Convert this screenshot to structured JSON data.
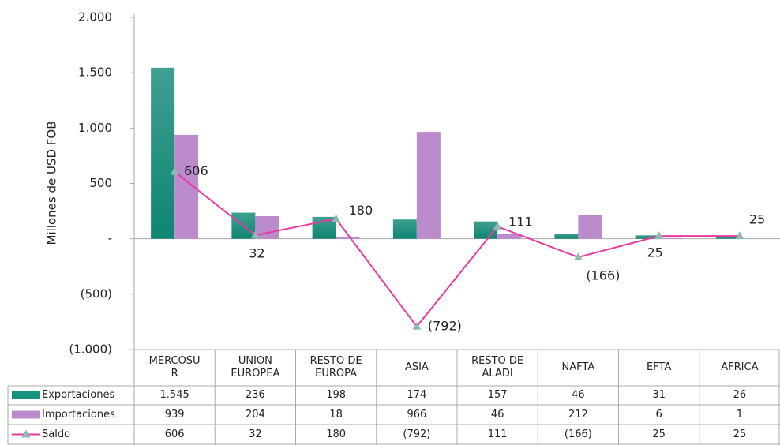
{
  "chart_data": {
    "type": "bar",
    "ylabel": "Millones de USD FOB",
    "categories": [
      "MERCOSU\nR",
      "UNION\nEUROPEA",
      "RESTO DE\nEUROPA",
      "ASIA",
      "RESTO DE\nALADI",
      "NAFTA",
      "EFTA",
      "AFRICA"
    ],
    "series": [
      {
        "name": "Exportaciones",
        "type": "bar",
        "color": "#17907c",
        "values": [
          1545,
          236,
          198,
          174,
          157,
          46,
          31,
          26
        ],
        "value_labels": [
          "1.545",
          "236",
          "198",
          "174",
          "157",
          "46",
          "31",
          "26"
        ]
      },
      {
        "name": "Importaciones",
        "type": "bar",
        "color": "#bb8bcb",
        "values": [
          939,
          204,
          18,
          966,
          46,
          212,
          6,
          1
        ],
        "value_labels": [
          "939",
          "204",
          "18",
          "966",
          "46",
          "212",
          "6",
          "1"
        ]
      },
      {
        "name": "Saldo",
        "type": "line",
        "color": "#ea3aa0",
        "marker_color": "#8fbab2",
        "values": [
          606,
          32,
          180,
          -792,
          111,
          -166,
          25,
          25
        ],
        "value_labels": [
          "606",
          "32",
          "180",
          "(792)",
          "111",
          "(166)",
          "25",
          "25"
        ]
      }
    ],
    "ylim": [
      -1000,
      2000
    ],
    "yticks": [
      {
        "value": 2000,
        "label": "2.000"
      },
      {
        "value": 1500,
        "label": "1.500"
      },
      {
        "value": 1000,
        "label": "1.000"
      },
      500,
      {
        "value": 0,
        "label": "-"
      },
      {
        "value": -500,
        "label": "(500)"
      },
      {
        "value": -1000,
        "label": "(1.000)"
      }
    ]
  }
}
